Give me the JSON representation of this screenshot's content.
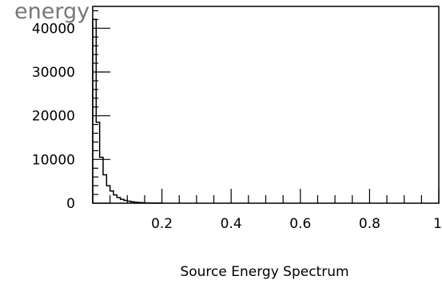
{
  "chart_data": {
    "type": "bar",
    "title": "energy",
    "xlabel": "Source Energy Spectrum",
    "ylabel": "",
    "xlim": [
      0,
      1
    ],
    "ylim": [
      0,
      45000
    ],
    "grid": false,
    "x_tick_labels": [
      "0.2",
      "0.4",
      "0.6",
      "0.8",
      "1"
    ],
    "y_tick_labels": [
      "0",
      "10000",
      "20000",
      "30000",
      "40000"
    ],
    "bin_width": 0.01,
    "bins": [
      {
        "x0": 0.0,
        "value": 42000
      },
      {
        "x0": 0.01,
        "value": 18500
      },
      {
        "x0": 0.02,
        "value": 10500
      },
      {
        "x0": 0.03,
        "value": 6500
      },
      {
        "x0": 0.04,
        "value": 4000
      },
      {
        "x0": 0.05,
        "value": 2800
      },
      {
        "x0": 0.06,
        "value": 1900
      },
      {
        "x0": 0.07,
        "value": 1300
      },
      {
        "x0": 0.08,
        "value": 900
      },
      {
        "x0": 0.09,
        "value": 650
      },
      {
        "x0": 0.1,
        "value": 450
      },
      {
        "x0": 0.11,
        "value": 320
      },
      {
        "x0": 0.12,
        "value": 230
      },
      {
        "x0": 0.13,
        "value": 160
      },
      {
        "x0": 0.14,
        "value": 110
      },
      {
        "x0": 0.15,
        "value": 80
      },
      {
        "x0": 0.16,
        "value": 55
      },
      {
        "x0": 0.17,
        "value": 40
      },
      {
        "x0": 0.18,
        "value": 28
      },
      {
        "x0": 0.19,
        "value": 20
      }
    ]
  }
}
